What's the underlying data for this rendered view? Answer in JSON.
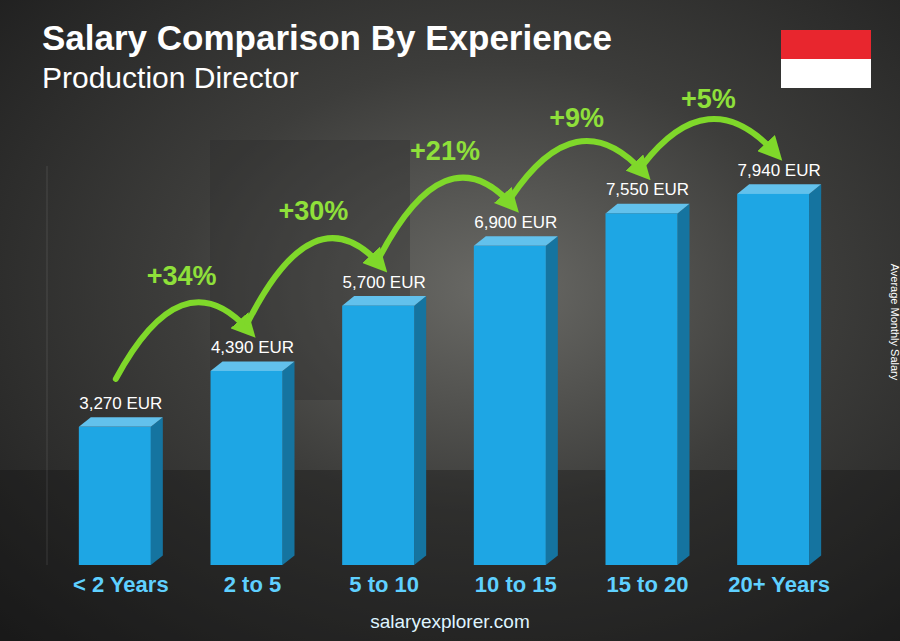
{
  "chart_data": {
    "type": "bar",
    "title": "Salary Comparison By Experience",
    "subtitle": "Production Director",
    "y_label": "Average Monthly Salary",
    "source": "salaryexplorer.com",
    "categories": [
      "< 2 Years",
      "2 to 5",
      "5 to 10",
      "10 to 15",
      "15 to 20",
      "20+ Years"
    ],
    "values": [
      3270,
      4390,
      5700,
      6900,
      7550,
      7940
    ],
    "value_labels": [
      "3,270 EUR",
      "4,390 EUR",
      "5,700 EUR",
      "6,900 EUR",
      "7,550 EUR",
      "7,940 EUR"
    ],
    "annotations": [
      "+34%",
      "+30%",
      "+21%",
      "+9%",
      "+5%"
    ],
    "color": "#1ea6e4",
    "ylim": [
      500,
      8500
    ],
    "tick_labels": false,
    "grid": false,
    "data_labels": true
  }
}
